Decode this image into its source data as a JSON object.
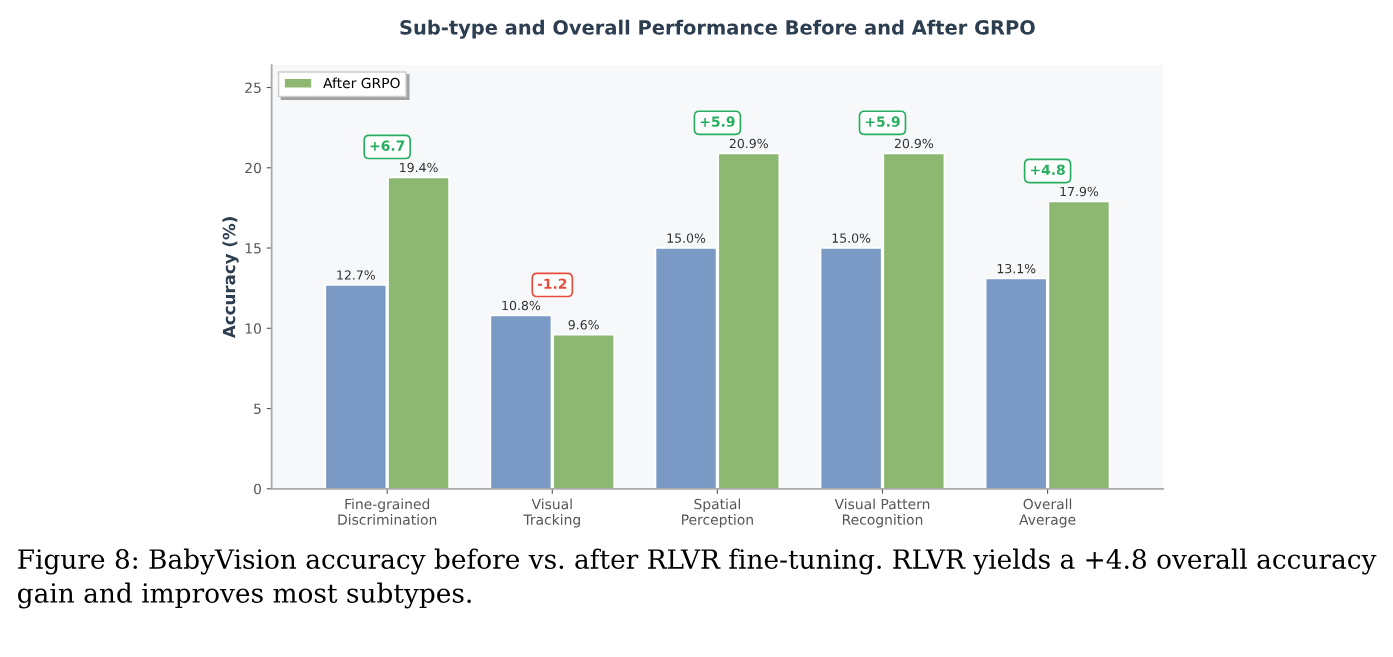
{
  "chart_data": {
    "type": "bar",
    "title": "Sub-type and Overall Performance Before and After GRPO",
    "ylabel": "Accuracy (%)",
    "categories": [
      "Fine-grained\nDiscrimination",
      "Visual\nTracking",
      "Spatial\nPerception",
      "Visual Pattern\nRecognition",
      "Overall\nAverage"
    ],
    "series": [
      {
        "color": "#7a99c5",
        "values": [
          12.7,
          10.8,
          15.0,
          15.0,
          13.1
        ],
        "value_labels": [
          "12.7%",
          "10.8%",
          "15.0%",
          "15.0%",
          "13.1%"
        ]
      },
      {
        "name": "After GRPO",
        "color": "#8cb872",
        "values": [
          19.4,
          9.6,
          20.9,
          20.9,
          17.9
        ],
        "value_labels": [
          "19.4%",
          "9.6%",
          "20.9%",
          "20.9%",
          "17.9%"
        ]
      }
    ],
    "ylim": [
      0,
      26.4
    ],
    "yticks": [
      0,
      5,
      10,
      15,
      20,
      25
    ],
    "grid": false,
    "legend": "top left",
    "annotations": [
      "+6.7",
      "-1.2",
      "+5.9",
      "+5.9",
      "+4.8",
      "Figure 8: BabyVision accuracy before vs. after RLVR fine-tuning. RLVR yields a +4.8 overall accuracy gain and improves most subtypes."
    ]
  }
}
